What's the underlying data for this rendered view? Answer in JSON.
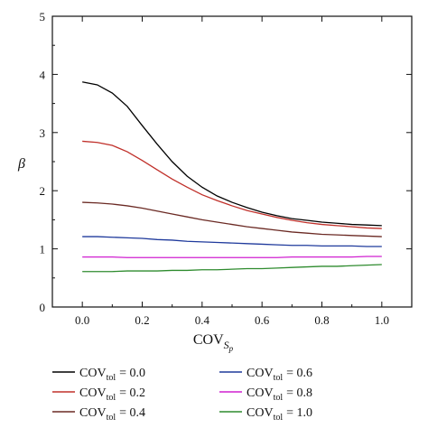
{
  "chart_data": {
    "type": "line",
    "xlabel": "COV",
    "xlabel_sub": "S",
    "xlabel_subsub": "p",
    "ylabel": "β",
    "xlim": [
      -0.1,
      1.1
    ],
    "ylim": [
      0,
      5
    ],
    "xticks": [
      "0.0",
      "0.2",
      "0.4",
      "0.6",
      "0.8",
      "1.0"
    ],
    "yticks": [
      "0",
      "1",
      "2",
      "3",
      "4",
      "5"
    ],
    "x": [
      0.0,
      0.05,
      0.1,
      0.15,
      0.2,
      0.25,
      0.3,
      0.35,
      0.4,
      0.45,
      0.5,
      0.55,
      0.6,
      0.65,
      0.7,
      0.75,
      0.8,
      0.85,
      0.9,
      0.95,
      1.0
    ],
    "legend_placement": "bottom",
    "grid": false,
    "series": [
      {
        "name": "COV",
        "sub": "tol",
        "value": "= 0.0",
        "color": "#000000",
        "values": [
          3.87,
          3.82,
          3.68,
          3.45,
          3.12,
          2.8,
          2.5,
          2.25,
          2.06,
          1.91,
          1.8,
          1.71,
          1.63,
          1.57,
          1.52,
          1.49,
          1.46,
          1.44,
          1.42,
          1.41,
          1.4
        ]
      },
      {
        "name": "COV",
        "sub": "tol",
        "value": "= 0.2",
        "color": "#c0302a",
        "values": [
          2.85,
          2.83,
          2.78,
          2.67,
          2.52,
          2.36,
          2.2,
          2.06,
          1.93,
          1.83,
          1.74,
          1.66,
          1.6,
          1.54,
          1.49,
          1.45,
          1.42,
          1.4,
          1.38,
          1.36,
          1.35
        ]
      },
      {
        "name": "COV",
        "sub": "tol",
        "value": "= 0.4",
        "color": "#6b2a24",
        "values": [
          1.8,
          1.79,
          1.77,
          1.74,
          1.7,
          1.65,
          1.6,
          1.55,
          1.5,
          1.46,
          1.42,
          1.38,
          1.35,
          1.32,
          1.29,
          1.27,
          1.25,
          1.24,
          1.23,
          1.22,
          1.21
        ]
      },
      {
        "name": "COV",
        "sub": "tol",
        "value": "= 0.6",
        "color": "#1f3a9c",
        "values": [
          1.21,
          1.21,
          1.2,
          1.19,
          1.18,
          1.16,
          1.15,
          1.13,
          1.12,
          1.11,
          1.1,
          1.09,
          1.08,
          1.07,
          1.06,
          1.06,
          1.05,
          1.05,
          1.05,
          1.04,
          1.04
        ]
      },
      {
        "name": "COV",
        "sub": "tol",
        "value": "= 0.8",
        "color": "#d020d0",
        "values": [
          0.86,
          0.86,
          0.86,
          0.85,
          0.85,
          0.85,
          0.85,
          0.85,
          0.85,
          0.85,
          0.85,
          0.85,
          0.85,
          0.85,
          0.86,
          0.86,
          0.86,
          0.86,
          0.86,
          0.87,
          0.87
        ]
      },
      {
        "name": "COV",
        "sub": "tol",
        "value": "= 1.0",
        "color": "#2e8b2e",
        "values": [
          0.61,
          0.61,
          0.61,
          0.62,
          0.62,
          0.62,
          0.63,
          0.63,
          0.64,
          0.64,
          0.65,
          0.66,
          0.66,
          0.67,
          0.68,
          0.69,
          0.7,
          0.7,
          0.71,
          0.72,
          0.73
        ]
      }
    ]
  }
}
